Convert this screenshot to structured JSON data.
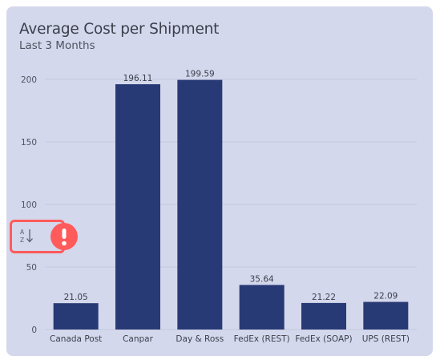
{
  "card": {
    "title": "Average Cost per Shipment",
    "subtitle": "Last 3 Months"
  },
  "colors": {
    "card_background": "#d4d8ec",
    "bar": "#283a75",
    "alert": "#ff5b5b"
  },
  "icons": {
    "sort": "sort-a-z-icon",
    "alert": "exclamation-icon"
  },
  "chart_data": {
    "type": "bar",
    "title": "Average Cost per Shipment",
    "subtitle": "Last 3 Months",
    "categories": [
      "Canada Post",
      "Canpar",
      "Day & Ross",
      "FedEx (REST)",
      "FedEx (SOAP)",
      "UPS (REST)"
    ],
    "values": [
      21.05,
      196.11,
      199.59,
      35.64,
      21.22,
      22.09
    ],
    "value_labels": [
      "21.05",
      "196.11",
      "199.59",
      "35.64",
      "21.22",
      "22.09"
    ],
    "ylim": [
      0,
      200
    ],
    "yticks": [
      0,
      50,
      100,
      150,
      200
    ],
    "ytick_labels": [
      "0",
      "50",
      "100",
      "150",
      "200"
    ],
    "xlabel": "",
    "ylabel": "",
    "grid": true,
    "legend": "none"
  }
}
